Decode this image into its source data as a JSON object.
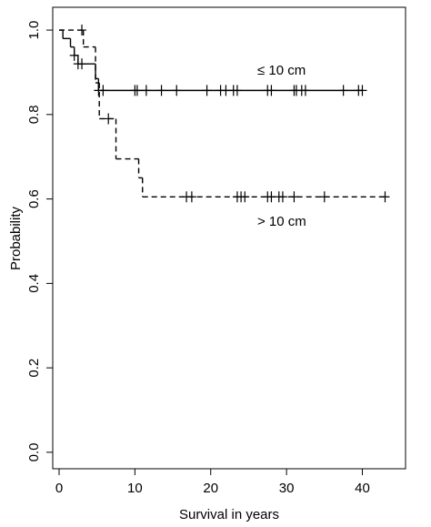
{
  "chart_data": {
    "type": "survival",
    "xlabel": "Survival in years",
    "ylabel": "Probability",
    "xlim": [
      -0.84,
      45.7
    ],
    "ylim": [
      -0.039,
      1.054
    ],
    "xticks": [
      0,
      10,
      20,
      30,
      40
    ],
    "yticks": [
      {
        "value": 0,
        "label": "0.0"
      },
      {
        "value": 0.2,
        "label": "0.2"
      },
      {
        "value": 0.4,
        "label": "0.4"
      },
      {
        "value": 0.6,
        "label": "0.6"
      },
      {
        "value": 0.8,
        "label": "0.8"
      },
      {
        "value": 1,
        "label": "1.0"
      }
    ],
    "series": [
      {
        "name": "≤ 10 cm",
        "color": "#000000",
        "dash": "solid",
        "x": [
          0,
          0.5,
          1.5,
          2,
          2.5,
          4.8,
          5.2,
          40
        ],
        "values": [
          1,
          0.98,
          0.96,
          0.94,
          0.92,
          0.885,
          0.857,
          0.857
        ],
        "censor_x": [
          2,
          2.5,
          3,
          5.2,
          5.8,
          10,
          10.3,
          11.5,
          13.5,
          15.5,
          19.5,
          21.3,
          22,
          23,
          23.5,
          27.5,
          28,
          31,
          31.3,
          32,
          32.5,
          37.5,
          39.5,
          40
        ],
        "censor_values": [
          0.94,
          0.92,
          0.92,
          0.857,
          0.857,
          0.857,
          0.857,
          0.857,
          0.857,
          0.857,
          0.857,
          0.857,
          0.857,
          0.857,
          0.857,
          0.857,
          0.857,
          0.857,
          0.857,
          0.857,
          0.857,
          0.857,
          0.857,
          0.857
        ]
      },
      {
        "name": "> 10 cm",
        "color": "#000000",
        "dash": "dashed",
        "x": [
          0,
          3.2,
          4.8,
          5.3,
          7.5,
          10.5,
          11,
          43
        ],
        "values": [
          1,
          0.96,
          0.875,
          0.79,
          0.695,
          0.65,
          0.605,
          0.605
        ],
        "censor_x": [
          3,
          6.5,
          16.8,
          17.5,
          23.5,
          24,
          24.5,
          27.5,
          28,
          29,
          29.5,
          31,
          35,
          43
        ],
        "censor_values": [
          1,
          0.79,
          0.605,
          0.605,
          0.605,
          0.605,
          0.605,
          0.605,
          0.605,
          0.605,
          0.605,
          0.605,
          0.605,
          0.605
        ]
      }
    ]
  }
}
